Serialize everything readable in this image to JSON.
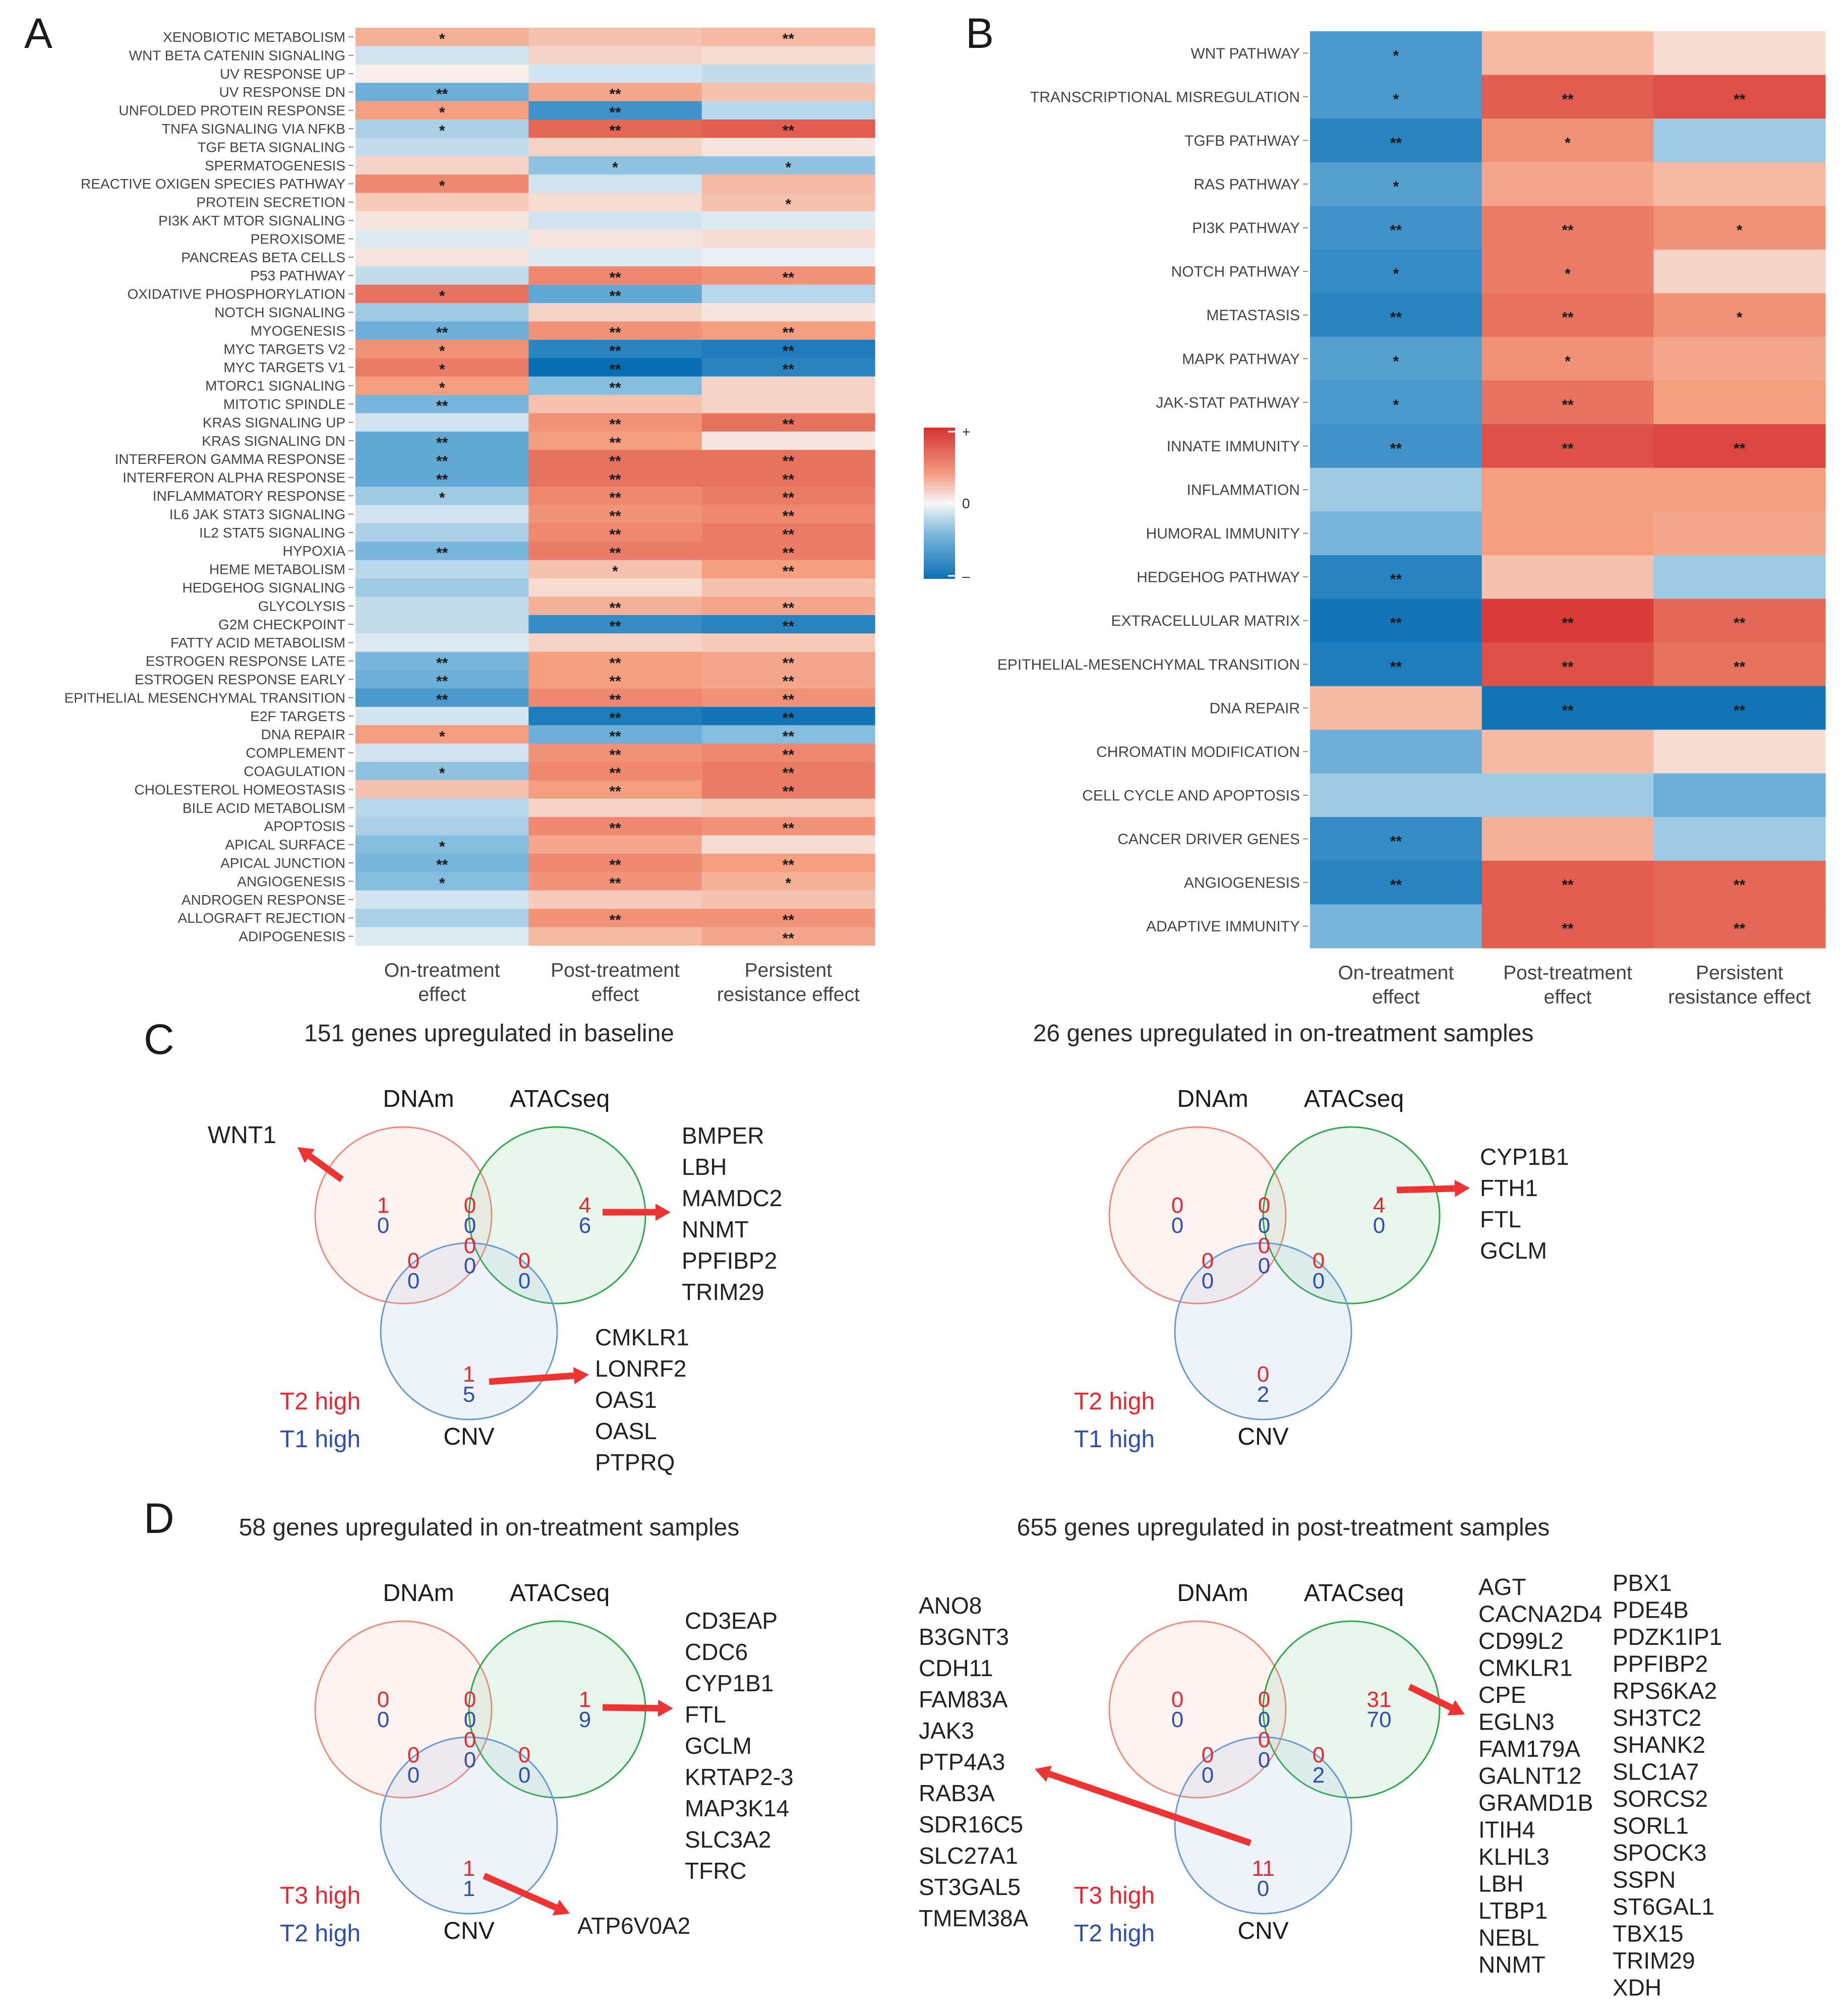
{
  "chart_data": [
    {
      "panel": "A",
      "type": "heatmap",
      "columns": [
        "On-treatment\neffect",
        "Post-treatment\neffect",
        "Persistent\nresistance effect"
      ],
      "rows": [
        "XENOBIOTIC METABOLISM",
        "WNT BETA CATENIN SIGNALING",
        "UV RESPONSE UP",
        "UV RESPONSE DN",
        "UNFOLDED PROTEIN RESPONSE",
        "TNFA SIGNALING VIA NFKB",
        "TGF BETA SIGNALING",
        "SPERMATOGENESIS",
        "REACTIVE OXIGEN SPECIES PATHWAY",
        "PROTEIN SECRETION",
        "PI3K AKT MTOR SIGNALING",
        "PEROXISOME",
        "PANCREAS BETA CELLS",
        "P53 PATHWAY",
        "OXIDATIVE PHOSPHORYLATION",
        "NOTCH SIGNALING",
        "MYOGENESIS",
        "MYC TARGETS V2",
        "MYC TARGETS V1",
        "MTORC1 SIGNALING",
        "MITOTIC SPINDLE",
        "KRAS SIGNALING UP",
        "KRAS SIGNALING DN",
        "INTERFERON GAMMA RESPONSE",
        "INTERFERON ALPHA RESPONSE",
        "INFLAMMATORY RESPONSE",
        "IL6 JAK STAT3 SIGNALING",
        "IL2 STAT5 SIGNALING",
        "HYPOXIA",
        "HEME METABOLISM",
        "HEDGEHOG SIGNALING",
        "GLYCOLYSIS",
        "G2M CHECKPOINT",
        "FATTY ACID METABOLISM",
        "ESTROGEN RESPONSE LATE",
        "ESTROGEN RESPONSE EARLY",
        "EPITHELIAL MESENCHYMAL TRANSITION",
        "E2F TARGETS",
        "DNA REPAIR",
        "COMPLEMENT",
        "COAGULATION",
        "CHOLESTEROL HOMEOSTASIS",
        "BILE ACID METABOLISM",
        "APOPTOSIS",
        "APICAL SURFACE",
        "APICAL JUNCTION",
        "ANGIOGENESIS",
        "ANDROGEN RESPONSE",
        "ALLOGRAFT REJECTION",
        "ADIPOGENESIS"
      ],
      "values": [
        [
          0.4,
          0.3,
          0.35
        ],
        [
          -0.15,
          0.2,
          0.15
        ],
        [
          0.05,
          -0.15,
          -0.2
        ],
        [
          -0.55,
          0.45,
          0.3
        ],
        [
          0.5,
          -0.75,
          -0.25
        ],
        [
          -0.3,
          0.75,
          0.8
        ],
        [
          -0.2,
          0.2,
          0.1
        ],
        [
          0.2,
          -0.4,
          -0.4
        ],
        [
          0.6,
          -0.15,
          0.35
        ],
        [
          0.25,
          0.15,
          0.3
        ],
        [
          0.1,
          -0.15,
          -0.1
        ],
        [
          -0.1,
          0.1,
          0.15
        ],
        [
          0.1,
          -0.1,
          -0.05
        ],
        [
          -0.2,
          0.6,
          0.55
        ],
        [
          0.7,
          -0.6,
          -0.25
        ],
        [
          -0.35,
          0.2,
          0.1
        ],
        [
          -0.55,
          0.55,
          0.5
        ],
        [
          0.55,
          -0.85,
          -0.9
        ],
        [
          0.65,
          -1.0,
          -0.85
        ],
        [
          0.5,
          -0.45,
          0.2
        ],
        [
          -0.5,
          0.3,
          0.2
        ],
        [
          -0.15,
          0.55,
          0.7
        ],
        [
          -0.6,
          0.5,
          0.1
        ],
        [
          -0.6,
          0.7,
          0.7
        ],
        [
          -0.6,
          0.7,
          0.7
        ],
        [
          -0.35,
          0.6,
          0.65
        ],
        [
          -0.15,
          0.55,
          0.6
        ],
        [
          -0.3,
          0.6,
          0.65
        ],
        [
          -0.5,
          0.65,
          0.65
        ],
        [
          -0.25,
          0.3,
          0.5
        ],
        [
          -0.35,
          0.15,
          0.3
        ],
        [
          -0.2,
          0.4,
          0.45
        ],
        [
          -0.2,
          -0.8,
          -0.85
        ],
        [
          -0.1,
          0.2,
          0.25
        ],
        [
          -0.5,
          0.5,
          0.45
        ],
        [
          -0.55,
          0.5,
          0.45
        ],
        [
          -0.7,
          0.6,
          0.55
        ],
        [
          -0.15,
          -0.9,
          -0.95
        ],
        [
          0.5,
          -0.55,
          -0.45
        ],
        [
          -0.15,
          0.55,
          0.6
        ],
        [
          -0.4,
          0.6,
          0.65
        ],
        [
          0.3,
          0.5,
          0.65
        ],
        [
          -0.25,
          0.2,
          0.25
        ],
        [
          -0.3,
          0.6,
          0.55
        ],
        [
          -0.45,
          0.45,
          0.15
        ],
        [
          -0.5,
          0.6,
          0.5
        ],
        [
          -0.45,
          0.55,
          0.4
        ],
        [
          -0.15,
          0.25,
          0.3
        ],
        [
          -0.3,
          0.55,
          0.55
        ],
        [
          -0.1,
          0.35,
          0.45
        ]
      ],
      "signif": [
        [
          "*",
          "",
          "**"
        ],
        [
          "",
          "",
          ""
        ],
        [
          "",
          "",
          ""
        ],
        [
          "**",
          "**",
          ""
        ],
        [
          "*",
          "**",
          ""
        ],
        [
          "*",
          "**",
          "**"
        ],
        [
          "",
          "",
          ""
        ],
        [
          "",
          "*",
          "*"
        ],
        [
          "*",
          "",
          ""
        ],
        [
          "",
          "",
          "*"
        ],
        [
          "",
          "",
          ""
        ],
        [
          "",
          "",
          ""
        ],
        [
          "",
          "",
          ""
        ],
        [
          "",
          "**",
          "**"
        ],
        [
          "*",
          "**",
          ""
        ],
        [
          "",
          "",
          ""
        ],
        [
          "**",
          "**",
          "**"
        ],
        [
          "*",
          "**",
          "**"
        ],
        [
          "*",
          "**",
          "**"
        ],
        [
          "*",
          "**",
          ""
        ],
        [
          "**",
          "",
          ""
        ],
        [
          "",
          "**",
          "**"
        ],
        [
          "**",
          "**",
          ""
        ],
        [
          "**",
          "**",
          "**"
        ],
        [
          "**",
          "**",
          "**"
        ],
        [
          "*",
          "**",
          "**"
        ],
        [
          "",
          "**",
          "**"
        ],
        [
          "",
          "**",
          "**"
        ],
        [
          "**",
          "**",
          "**"
        ],
        [
          "",
          "*",
          "**"
        ],
        [
          "",
          "",
          ""
        ],
        [
          "",
          "**",
          "**"
        ],
        [
          "",
          "**",
          "**"
        ],
        [
          "",
          "",
          ""
        ],
        [
          "**",
          "**",
          "**"
        ],
        [
          "**",
          "**",
          "**"
        ],
        [
          "**",
          "**",
          "**"
        ],
        [
          "",
          "**",
          "**"
        ],
        [
          "*",
          "**",
          "**"
        ],
        [
          "",
          "**",
          "**"
        ],
        [
          "*",
          "**",
          "**"
        ],
        [
          "",
          "**",
          "**"
        ],
        [
          "",
          "",
          ""
        ],
        [
          "",
          "**",
          "**"
        ],
        [
          "*",
          "",
          ""
        ],
        [
          "**",
          "**",
          "**"
        ],
        [
          "*",
          "**",
          "*"
        ],
        [
          "",
          "",
          ""
        ],
        [
          "",
          "**",
          "**"
        ],
        [
          "",
          "",
          "**"
        ]
      ]
    },
    {
      "panel": "B",
      "type": "heatmap",
      "columns": [
        "On-treatment\neffect",
        "Post-treatment\neffect",
        "Persistent\nresistance effect"
      ],
      "rows": [
        "WNT PATHWAY",
        "TRANSCRIPTIONAL MISREGULATION",
        "TGFB PATHWAY",
        "RAS PATHWAY",
        "PI3K PATHWAY",
        "NOTCH PATHWAY",
        "METASTASIS",
        "MAPK PATHWAY",
        "JAK-STAT PATHWAY",
        "INNATE IMMUNITY",
        "INFLAMMATION",
        "HUMORAL IMMUNITY",
        "HEDGEHOG PATHWAY",
        "EXTRACELLULAR MATRIX",
        "EPITHELIAL-MESENCHYMAL TRANSITION",
        "DNA REPAIR",
        "CHROMATIN MODIFICATION",
        "CELL CYCLE AND APOPTOSIS",
        "CANCER DRIVER GENES",
        "ANGIOGENESIS",
        "ADAPTIVE IMMUNITY"
      ],
      "values": [
        [
          -0.7,
          0.35,
          0.15
        ],
        [
          -0.7,
          0.8,
          0.85
        ],
        [
          -0.85,
          0.55,
          -0.35
        ],
        [
          -0.65,
          0.45,
          0.35
        ],
        [
          -0.75,
          0.65,
          0.55
        ],
        [
          -0.8,
          0.65,
          0.2
        ],
        [
          -0.85,
          0.7,
          0.55
        ],
        [
          -0.65,
          0.55,
          0.45
        ],
        [
          -0.7,
          0.7,
          0.5
        ],
        [
          -0.75,
          0.85,
          0.9
        ],
        [
          -0.35,
          0.5,
          0.5
        ],
        [
          -0.5,
          0.5,
          0.45
        ],
        [
          -0.85,
          0.3,
          -0.35
        ],
        [
          -0.95,
          0.95,
          0.75
        ],
        [
          -0.9,
          0.85,
          0.7
        ],
        [
          0.35,
          -0.95,
          -0.95
        ],
        [
          -0.55,
          0.35,
          0.15
        ],
        [
          -0.35,
          -0.35,
          -0.55
        ],
        [
          -0.8,
          0.4,
          -0.35
        ],
        [
          -0.85,
          0.8,
          0.75
        ],
        [
          -0.5,
          0.8,
          0.75
        ]
      ],
      "signif": [
        [
          "*",
          "",
          ""
        ],
        [
          "*",
          "**",
          "**"
        ],
        [
          "**",
          "*",
          ""
        ],
        [
          "*",
          "",
          ""
        ],
        [
          "**",
          "**",
          "*"
        ],
        [
          "*",
          "*",
          ""
        ],
        [
          "**",
          "**",
          "*"
        ],
        [
          "*",
          "*",
          ""
        ],
        [
          "*",
          "**",
          ""
        ],
        [
          "**",
          "**",
          "**"
        ],
        [
          "",
          "",
          ""
        ],
        [
          "",
          "",
          ""
        ],
        [
          "**",
          "",
          ""
        ],
        [
          "**",
          "**",
          "**"
        ],
        [
          "**",
          "**",
          "**"
        ],
        [
          "",
          "**",
          "**"
        ],
        [
          "",
          "",
          ""
        ],
        [
          "",
          "",
          ""
        ],
        [
          "**",
          "",
          ""
        ],
        [
          "**",
          "**",
          "**"
        ],
        [
          "",
          "**",
          "**"
        ]
      ]
    },
    {
      "panel": "C",
      "type": "venn",
      "title": "151 genes upregulated in baseline",
      "sets": [
        "DNAm",
        "ATACseq",
        "CNV"
      ],
      "legend": [
        "T2  high",
        "T1 high"
      ],
      "counts": {
        "dnam": [
          "1",
          "0"
        ],
        "atac": [
          "4",
          "6"
        ],
        "cnv": [
          "1",
          "5"
        ],
        "dnam_atac": [
          "0",
          "0"
        ],
        "dnam_cnv": [
          "0",
          "0"
        ],
        "atac_cnv": [
          "0",
          "0"
        ],
        "all": [
          "0",
          "0"
        ]
      },
      "callouts": [
        [
          "WNT1"
        ],
        [
          "BMPER",
          "LBH",
          "MAMDC2",
          "NNMT",
          "PPFIBP2",
          "TRIM29"
        ],
        [
          "CMKLR1",
          "LONRF2",
          "OAS1",
          "OASL",
          "PTPRQ"
        ]
      ]
    },
    {
      "panel": "C2",
      "type": "venn",
      "title": "26 genes upregulated in on-treatment samples",
      "sets": [
        "DNAm",
        "ATACseq",
        "CNV"
      ],
      "legend": [
        "T2  high",
        "T1 high"
      ],
      "counts": {
        "dnam": [
          "0",
          "0"
        ],
        "atac": [
          "4",
          "0"
        ],
        "cnv": [
          "0",
          "2"
        ],
        "dnam_atac": [
          "0",
          "0"
        ],
        "dnam_cnv": [
          "0",
          "0"
        ],
        "atac_cnv": [
          "0",
          "0"
        ],
        "all": [
          "0",
          "0"
        ]
      },
      "callouts": [
        [
          "CYP1B1",
          "FTH1",
          "FTL",
          "GCLM"
        ]
      ]
    },
    {
      "panel": "D",
      "type": "venn",
      "title": "58 genes upregulated in on-treatment samples",
      "sets": [
        "DNAm",
        "ATACseq",
        "CNV"
      ],
      "legend": [
        "T3  high",
        "T2 high"
      ],
      "counts": {
        "dnam": [
          "0",
          "0"
        ],
        "atac": [
          "1",
          "9"
        ],
        "cnv": [
          "1",
          "1"
        ],
        "dnam_atac": [
          "0",
          "0"
        ],
        "dnam_cnv": [
          "0",
          "0"
        ],
        "atac_cnv": [
          "0",
          "0"
        ],
        "all": [
          "0",
          "0"
        ]
      },
      "callouts": [
        [
          "CD3EAP",
          "CDC6",
          "CYP1B1",
          "FTL",
          "GCLM",
          "KRTAP2-3",
          "MAP3K14",
          "SLC3A2",
          "TFRC"
        ],
        [
          "ATP6V0A2"
        ]
      ]
    },
    {
      "panel": "D2",
      "type": "venn",
      "title": "655 genes upregulated in post-treatment samples",
      "sets": [
        "DNAm",
        "ATACseq",
        "CNV"
      ],
      "legend": [
        "T3  high",
        "T2 high"
      ],
      "counts": {
        "dnam": [
          "0",
          "0"
        ],
        "atac": [
          "31",
          "70"
        ],
        "cnv": [
          "11",
          "0"
        ],
        "dnam_atac": [
          "0",
          "0"
        ],
        "dnam_cnv": [
          "0",
          "0"
        ],
        "atac_cnv": [
          "0",
          "2"
        ],
        "all": [
          "0",
          "0"
        ]
      },
      "callouts": [
        [
          "ANO8",
          "B3GNT3",
          "CDH11",
          "FAM83A",
          "JAK3",
          "PTP4A3",
          "RAB3A",
          "SDR16C5",
          "SLC27A1",
          "ST3GAL5",
          "TMEM38A"
        ],
        [
          "AGT",
          "CACNA2D4",
          "CD99L2",
          "CMKLR1",
          "CPE",
          "EGLN3",
          "FAM179A",
          "GALNT12",
          "GRAMD1B",
          "ITIH4",
          "KLHL3",
          "LBH",
          "LTBP1",
          "NEBL",
          "NNMT"
        ],
        [
          "PBX1",
          "PDE4B",
          "PDZK1IP1",
          "PPFIBP2",
          "RPS6KA2",
          "SH3TC2",
          "SHANK2",
          "SLC1A7",
          "SORCS2",
          "SORL1",
          "SPOCK3",
          "SSPN",
          "ST6GAL1",
          "TBX15",
          "TRIM29",
          "XDH"
        ]
      ]
    }
  ],
  "panel_labels": {
    "a": "A",
    "b": "B",
    "c": "C",
    "d": "D"
  },
  "colorbar": {
    "plus": "+",
    "zero": "0",
    "minus": "–"
  },
  "colors": {
    "red": "#e8272f",
    "blue": "#2f4fb0",
    "dnam": "#f08a7a",
    "atac": "#2ea84a",
    "cnv": "#6a9ad6",
    "arrow": "#ee3333"
  }
}
